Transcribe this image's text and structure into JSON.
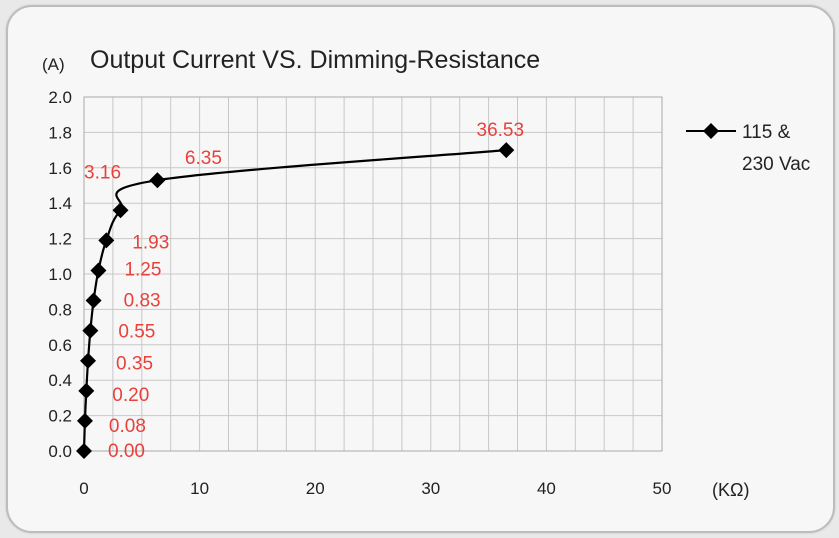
{
  "chart_data": {
    "type": "line",
    "title": "Output Current VS. Dimming-Resistance",
    "ylabel": "(A)",
    "xlabel": "(KΩ)",
    "xlim": [
      0,
      50
    ],
    "ylim": [
      0,
      2.0
    ],
    "x_ticks": [
      "0",
      "10",
      "20",
      "30",
      "40",
      "50"
    ],
    "y_ticks": [
      "0.0",
      "0.2",
      "0.4",
      "0.6",
      "0.8",
      "1.0",
      "1.2",
      "1.4",
      "1.6",
      "1.8",
      "2.0"
    ],
    "grid": true,
    "legend_position": "right",
    "legend_lines": [
      "115 &",
      "230 Vac"
    ],
    "series": [
      {
        "name": "115 & 230 Vac",
        "color": "#000000",
        "marker": "diamond",
        "points": [
          {
            "x": 0.0,
            "y": 0.0,
            "label": "0.00"
          },
          {
            "x": 0.08,
            "y": 0.17,
            "label": "0.08"
          },
          {
            "x": 0.2,
            "y": 0.34,
            "label": "0.20"
          },
          {
            "x": 0.35,
            "y": 0.51,
            "label": "0.35"
          },
          {
            "x": 0.55,
            "y": 0.68,
            "label": "0.55"
          },
          {
            "x": 0.83,
            "y": 0.85,
            "label": "0.83"
          },
          {
            "x": 1.25,
            "y": 1.02,
            "label": "1.25"
          },
          {
            "x": 1.93,
            "y": 1.19,
            "label": "1.93"
          },
          {
            "x": 3.16,
            "y": 1.36,
            "label": "3.16"
          },
          {
            "x": 6.35,
            "y": 1.53,
            "label": "6.35"
          },
          {
            "x": 36.53,
            "y": 1.7,
            "label": "36.53"
          }
        ]
      }
    ],
    "label_color": "#e8413c"
  }
}
